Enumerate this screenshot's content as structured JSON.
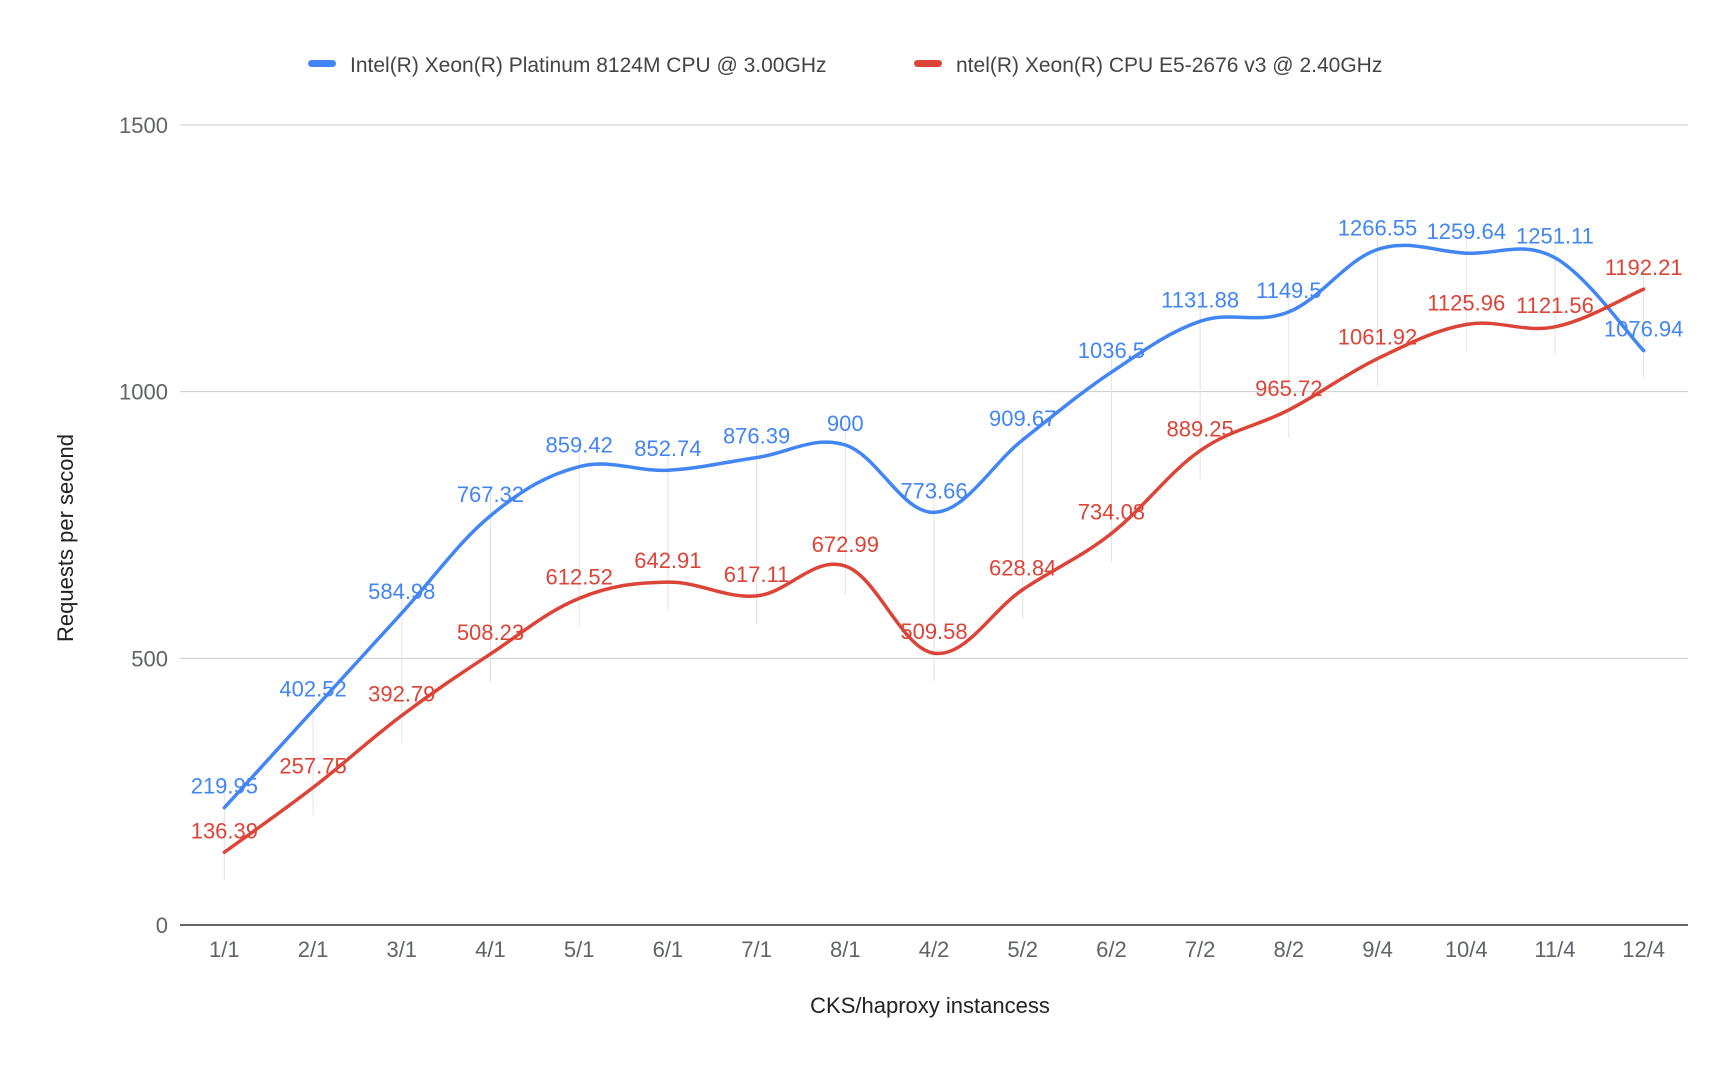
{
  "chart_data": {
    "type": "line",
    "title": "",
    "xlabel": "CKS/haproxy instancess",
    "ylabel": "Requests per second",
    "ylim": [
      0,
      1500
    ],
    "yticks": [
      0,
      500,
      1000,
      1500
    ],
    "grid": true,
    "legend_position": "top",
    "categories": [
      "1/1",
      "2/1",
      "3/1",
      "4/1",
      "5/1",
      "6/1",
      "7/1",
      "8/1",
      "4/2",
      "5/2",
      "6/2",
      "7/2",
      "8/2",
      "9/4",
      "10/4",
      "11/4",
      "12/4"
    ],
    "series": [
      {
        "name": "Intel(R) Xeon(R) Platinum 8124M CPU @ 3.00GHz",
        "color": "#4285f4",
        "values": [
          219.95,
          402.52,
          584.98,
          767.32,
          859.42,
          852.74,
          876.39,
          900,
          773.66,
          909.67,
          1036.5,
          1131.88,
          1149.5,
          1266.55,
          1259.64,
          1251.11,
          1076.94
        ],
        "labels": [
          "219.95",
          "402.52",
          "584.98",
          "767.32",
          "859.42",
          "852.74",
          "876.39",
          "900",
          "773.66",
          "909.67",
          "1036.5",
          "1131.88",
          "1149.5",
          "1266.55",
          "1259.64",
          "1251.11",
          "1076.94"
        ]
      },
      {
        "name": "ntel(R) Xeon(R) CPU E5-2676 v3 @ 2.40GHz",
        "color": "#db4437",
        "values": [
          136.39,
          257.75,
          392.79,
          508.23,
          612.52,
          642.91,
          617.11,
          672.99,
          509.58,
          628.84,
          734.08,
          889.25,
          965.72,
          1061.92,
          1125.96,
          1121.56,
          1192.21
        ],
        "labels": [
          "136.39",
          "257.75",
          "392.79",
          "508.23",
          "612.52",
          "642.91",
          "617.11",
          "672.99",
          "509.58",
          "628.84",
          "734.08",
          "889.25",
          "965.72",
          "1061.92",
          "1125.96",
          "1121.56",
          "1192.21"
        ]
      }
    ]
  }
}
